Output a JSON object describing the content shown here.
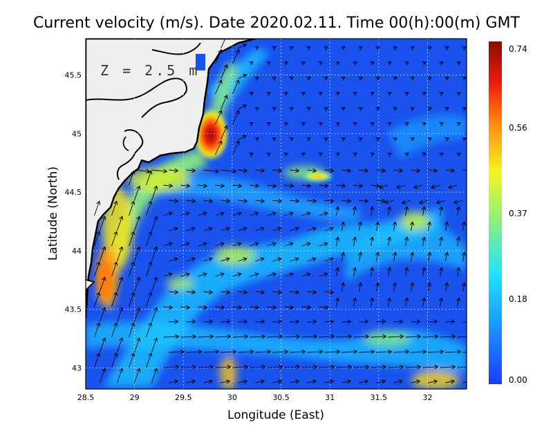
{
  "title": "Current velocity (m/s). Date 2020.02.11. Time 00(h):00(m) GMT",
  "depth_label": "Z = 2.5 m",
  "x_axis": {
    "label": "Longitude (East)",
    "range": [
      28.5,
      32.4
    ],
    "ticks": [
      28.5,
      29,
      29.5,
      30,
      30.5,
      31,
      31.5,
      32
    ],
    "tick_labels": [
      "28.5",
      "29",
      "29.5",
      "30",
      "30.5",
      "31",
      "31.5",
      "32"
    ]
  },
  "y_axis": {
    "label": "Latitude (North)",
    "range": [
      42.82,
      45.81
    ],
    "ticks": [
      43,
      43.5,
      44,
      44.5,
      45,
      45.5
    ],
    "tick_labels": [
      "43",
      "43.5",
      "44",
      "44.5",
      "45",
      "45.5"
    ]
  },
  "colorbar": {
    "min": 0.0,
    "max": 0.74,
    "tick_labels": [
      "0.74",
      "0.56",
      "0.37",
      "0.18",
      "0.00"
    ],
    "colors": [
      "#1a3cff",
      "#1a9cff",
      "#1ee3ff",
      "#8ff07a",
      "#f5f51e",
      "#ff8a10",
      "#ee1a0a",
      "#8a0c05"
    ]
  },
  "grid": true,
  "colors": {
    "land": "#efefef",
    "coast": "#000000",
    "background_water": "#1a52ee"
  }
}
